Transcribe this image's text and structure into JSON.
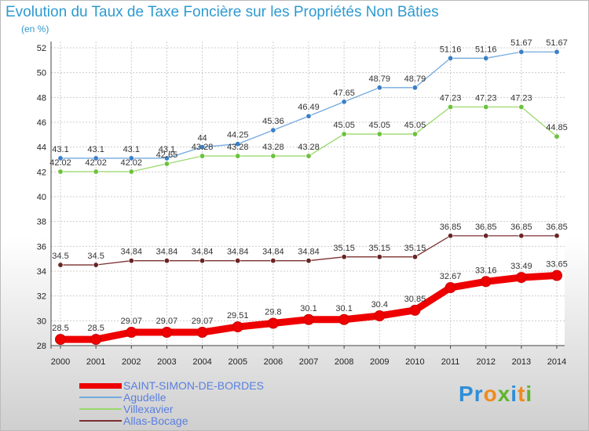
{
  "title": "Evolution du Taux de Taxe Foncière sur les Propriétés Non Bâties",
  "subtitle": "(en %)",
  "logo": "Proxiti",
  "colors": {
    "title": "#2e9ad0",
    "legend_text": "#5a7fe0",
    "grid": "#cccccc",
    "axis": "#444444",
    "label": "#222222"
  },
  "legend": [
    {
      "label": "SAINT-SIMON-DE-BORDES",
      "color": "#ee0000"
    },
    {
      "label": "Agudelle",
      "color": "#73a9df"
    },
    {
      "label": "Villexavier",
      "color": "#9ad96b"
    },
    {
      "label": "Allas-Bocage",
      "color": "#7b2f2f"
    }
  ],
  "chart_data": {
    "type": "line",
    "title": "Evolution du Taux de Taxe Foncière sur les Propriétés Non Bâties",
    "ylabel": "(en %)",
    "xlabel": "",
    "ylim": [
      28,
      52
    ],
    "yticks": [
      28,
      30,
      32,
      34,
      36,
      38,
      40,
      42,
      44,
      46,
      48,
      50,
      52
    ],
    "grid": true,
    "x": [
      "2000",
      "2001",
      "2002",
      "2003",
      "2004",
      "2005",
      "2006",
      "2007",
      "2008",
      "2009",
      "2010",
      "2011",
      "2012",
      "2013",
      "2014"
    ],
    "series": [
      {
        "name": "Agudelle",
        "color": "#73a9df",
        "marker": "#3a7fc6",
        "bold": false,
        "values": [
          43.1,
          43.1,
          43.1,
          43.1,
          44,
          44.25,
          45.36,
          46.49,
          47.65,
          48.79,
          48.79,
          51.16,
          51.16,
          51.67,
          51.67
        ],
        "labels": [
          "43.1",
          "43.1",
          "43.1",
          "43.1",
          "44",
          "44.25",
          "45.36",
          "46.49",
          "47.65",
          "48.79",
          "48.79",
          "51.16",
          "51.16",
          "51.67",
          "51.67"
        ]
      },
      {
        "name": "Villexavier",
        "color": "#9ad96b",
        "marker": "#6cc23c",
        "bold": false,
        "values": [
          42.02,
          42.02,
          42.02,
          42.65,
          43.28,
          43.28,
          43.28,
          43.28,
          45.05,
          45.05,
          45.05,
          47.23,
          47.23,
          47.23,
          44.85
        ],
        "labels": [
          "42.02",
          "42.02",
          "42.02",
          "42.65",
          "43.28",
          "43.28",
          "43.28",
          "43.28",
          "45.05",
          "45.05",
          "45.05",
          "47.23",
          "47.23",
          "47.23",
          "44.85"
        ]
      },
      {
        "name": "Allas-Bocage",
        "color": "#7b2f2f",
        "marker": "#6a2424",
        "bold": false,
        "values": [
          34.5,
          34.5,
          34.84,
          34.84,
          34.84,
          34.84,
          34.84,
          34.84,
          35.15,
          35.15,
          35.15,
          36.85,
          36.85,
          36.85,
          36.85
        ],
        "labels": [
          "34.5",
          "34.5",
          "34.84",
          "34.84",
          "34.84",
          "34.84",
          "34.84",
          "34.84",
          "35.15",
          "35.15",
          "35.15",
          "36.85",
          "36.85",
          "36.85",
          "36.85"
        ]
      },
      {
        "name": "SAINT-SIMON-DE-BORDES",
        "color": "#ee0000",
        "marker": "#ee0000",
        "bold": true,
        "values": [
          28.5,
          28.5,
          29.07,
          29.07,
          29.07,
          29.51,
          29.8,
          30.1,
          30.1,
          30.4,
          30.85,
          32.67,
          33.16,
          33.49,
          33.65
        ],
        "labels": [
          "28.5",
          "28.5",
          "29.07",
          "29.07",
          "29.07",
          "29.51",
          "29.8",
          "30.1",
          "30.1",
          "30.4",
          "30.85",
          "32.67",
          "33.16",
          "33.49",
          "33.65"
        ]
      }
    ]
  }
}
